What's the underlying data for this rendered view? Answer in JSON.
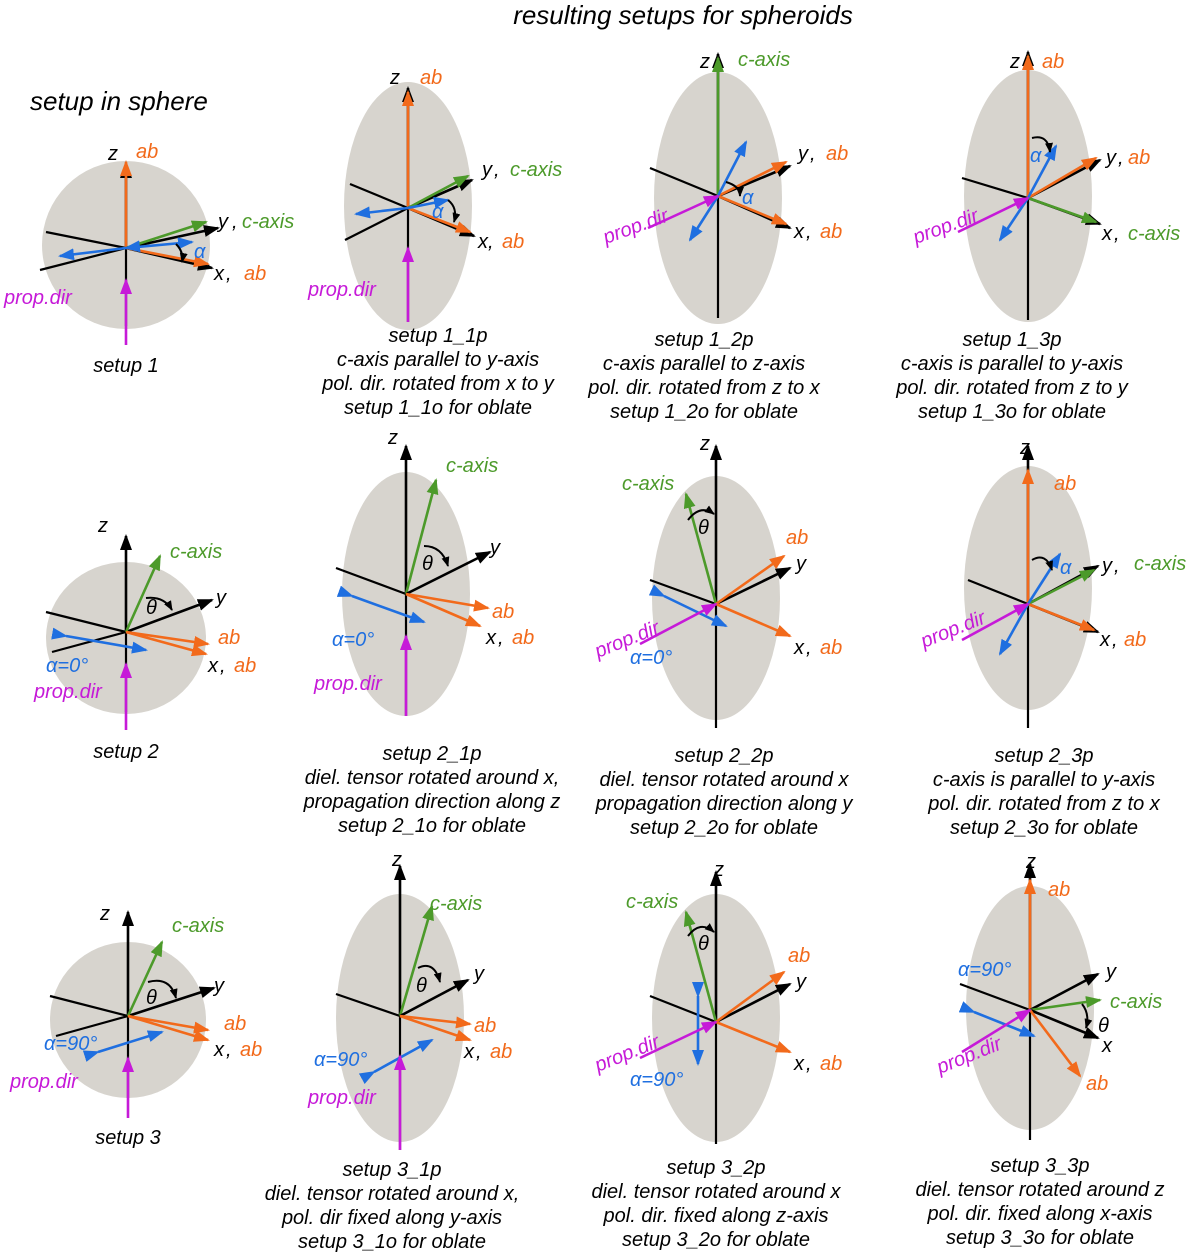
{
  "title": "resulting setups for spheroids",
  "sphere_heading": "setup in sphere",
  "colors": {
    "ellipse": "#d7d4ce",
    "black": "#000000",
    "orange": "#f26a1b",
    "green": "#4c9a2a",
    "blue": "#1f6fe0",
    "magenta": "#c61ad8"
  },
  "labels": {
    "x": "x",
    "y": "y",
    "z": "z",
    "ab": "ab",
    "c_axis": "c-axis",
    "comma": ",",
    "prop_dir": "prop.dir",
    "alpha": "α",
    "theta": "θ",
    "alpha_0": "α=0°",
    "alpha_90": "α=90°"
  },
  "captions": {
    "s1": [
      "setup 1"
    ],
    "s1_1p": [
      "setup 1_1p",
      "c-axis parallel to y-axis",
      "pol. dir. rotated from x to y",
      "setup 1_1o for oblate"
    ],
    "s1_2p": [
      "setup 1_2p",
      "c-axis parallel to z-axis",
      "pol. dir. rotated from z to x",
      "setup 1_2o for oblate"
    ],
    "s1_3p": [
      "setup 1_3p",
      "c-axis is parallel to y-axis",
      "pol. dir. rotated from z to y",
      "setup 1_3o for oblate"
    ],
    "s2": [
      "setup 2"
    ],
    "s2_1p": [
      "setup 2_1p",
      "diel. tensor rotated around x,",
      "propagation direction along z",
      "setup 2_1o for oblate"
    ],
    "s2_2p": [
      "setup 2_2p",
      "diel. tensor rotated around x",
      "propagation direction along y",
      "setup 2_2o for oblate"
    ],
    "s2_3p": [
      "setup 2_3p",
      "c-axis is parallel to y-axis",
      "pol. dir. rotated from z to x",
      "setup 2_3o for oblate"
    ],
    "s3": [
      "setup 3"
    ],
    "s3_1p": [
      "setup 3_1p",
      "diel. tensor rotated around x,",
      "pol. dir fixed along y-axis",
      "setup 3_1o for oblate"
    ],
    "s3_2p": [
      "setup 3_2p",
      "diel. tensor rotated around x",
      "pol. dir. fixed along z-axis",
      "setup 3_2o for oblate"
    ],
    "s3_3p": [
      "setup 3_3p",
      "diel. tensor rotated around z",
      "pol. dir. fixed along x-axis",
      "setup 3_3o for oblate"
    ]
  }
}
